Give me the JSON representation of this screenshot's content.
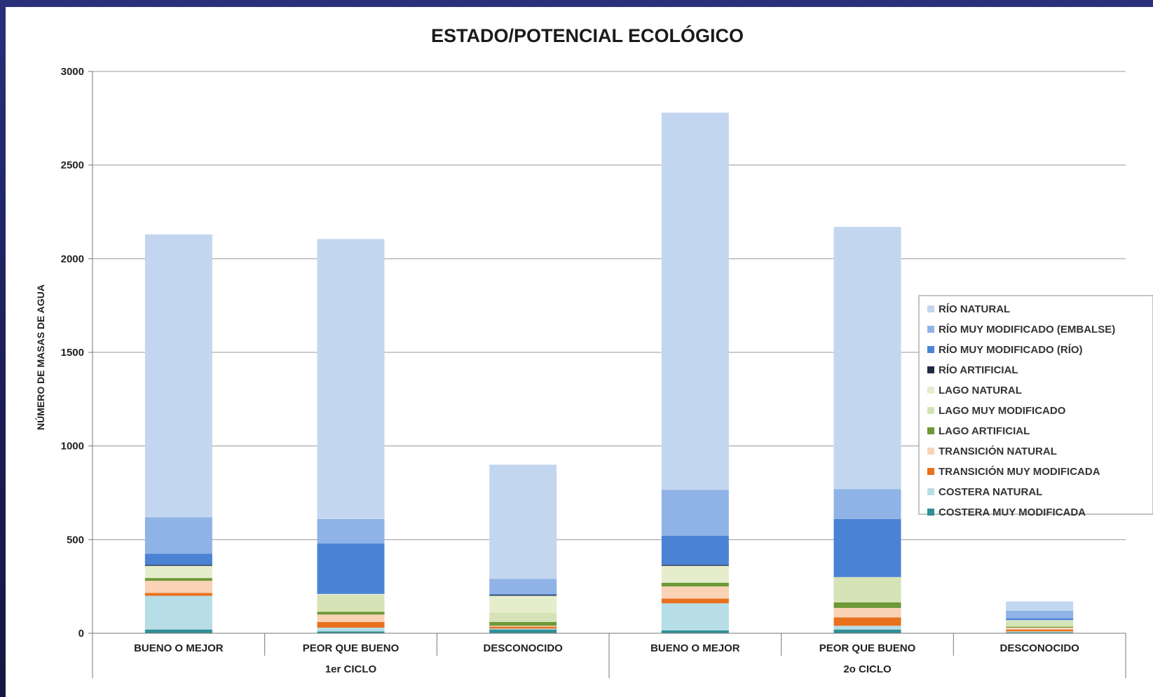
{
  "chart_data": {
    "type": "bar",
    "stacked": true,
    "title": "ESTADO/POTENCIAL ECOLÓGICO",
    "ylabel": "NÚMERO DE MASAS DE AGUA",
    "xlabel": "",
    "ylim": [
      0,
      3000
    ],
    "yticks": [
      0,
      500,
      1000,
      1500,
      2000,
      2500,
      3000
    ],
    "grid": true,
    "legend_position": "right",
    "categories": [
      "BUENO O MEJOR",
      "PEOR QUE BUENO",
      "DESCONOCIDO",
      "BUENO O MEJOR",
      "PEOR QUE BUENO",
      "DESCONOCIDO"
    ],
    "groups": [
      {
        "label": "1er CICLO",
        "span": [
          0,
          2
        ]
      },
      {
        "label": "2o CICLO",
        "span": [
          3,
          5
        ]
      }
    ],
    "series": [
      {
        "name": "COSTERA MUY MODIFICADA",
        "color": "#2e8f96",
        "values": [
          20,
          10,
          20,
          15,
          20,
          5
        ]
      },
      {
        "name": "COSTERA NATURAL",
        "color": "#b7dde6",
        "values": [
          180,
          20,
          5,
          145,
          20,
          5
        ]
      },
      {
        "name": "TRANSICIÓN MUY MODIFICADA",
        "color": "#e8711e",
        "values": [
          15,
          30,
          10,
          25,
          45,
          10
        ]
      },
      {
        "name": "TRANSICIÓN NATURAL",
        "color": "#fad3b6",
        "values": [
          65,
          40,
          5,
          65,
          50,
          10
        ]
      },
      {
        "name": "LAGO ARTIFICIAL",
        "color": "#6e9937",
        "values": [
          15,
          15,
          20,
          20,
          30,
          5
        ]
      },
      {
        "name": "LAGO MUY MODIFICADO",
        "color": "#d5e3b6",
        "values": [
          0,
          90,
          50,
          0,
          135,
          30
        ]
      },
      {
        "name": "LAGO NATURAL",
        "color": "#e5edcd",
        "values": [
          65,
          5,
          90,
          90,
          0,
          5
        ]
      },
      {
        "name": "RÍO ARTIFICIAL",
        "color": "#1f2a44",
        "values": [
          5,
          0,
          5,
          5,
          0,
          0
        ]
      },
      {
        "name": "RÍO MUY MODIFICADO (RÍO)",
        "color": "#4a83d4",
        "values": [
          60,
          270,
          5,
          155,
          310,
          10
        ]
      },
      {
        "name": "RÍO MUY MODIFICADO (EMBALSE)",
        "color": "#8fb3e6",
        "values": [
          195,
          130,
          80,
          245,
          160,
          40
        ]
      },
      {
        "name": "RÍO NATURAL",
        "color": "#c3d6f0",
        "values": [
          1510,
          1495,
          610,
          2015,
          1400,
          50
        ]
      }
    ]
  }
}
